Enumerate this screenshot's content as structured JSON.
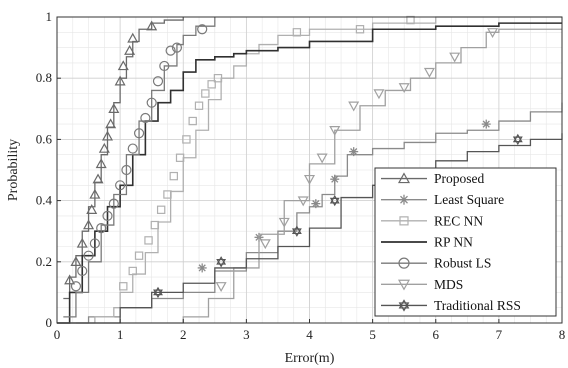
{
  "chart_data": {
    "type": "line",
    "title": "",
    "xlabel": "Error(m)",
    "ylabel": "Probability",
    "xlim": [
      0,
      8
    ],
    "ylim": [
      0,
      1
    ],
    "xticks": [
      "0",
      "1",
      "2",
      "3",
      "4",
      "5",
      "6",
      "7",
      "8"
    ],
    "yticks": [
      "0",
      "0.2",
      "0.4",
      "0.6",
      "0.8",
      "1"
    ],
    "grid": true,
    "minor_grid": true,
    "legend_position": "bottom-right",
    "series": [
      {
        "name": "Proposed",
        "color": "#6a6a6a",
        "marker": "triangle-up",
        "x": [
          0.1,
          0.2,
          0.3,
          0.4,
          0.5,
          0.6,
          0.7,
          0.8,
          0.9,
          1.0,
          1.1,
          1.2,
          1.3,
          1.5,
          1.7,
          2.0
        ],
        "y": [
          0.08,
          0.15,
          0.22,
          0.3,
          0.38,
          0.46,
          0.55,
          0.64,
          0.72,
          0.8,
          0.87,
          0.92,
          0.96,
          0.98,
          0.99,
          1.0
        ],
        "markers_x": [
          0.2,
          0.3,
          0.4,
          0.5,
          0.55,
          0.6,
          0.65,
          0.7,
          0.75,
          0.8,
          0.85,
          0.9,
          1.0,
          1.05,
          1.15,
          1.2,
          1.5
        ],
        "markers_y": [
          0.14,
          0.2,
          0.26,
          0.32,
          0.37,
          0.42,
          0.47,
          0.52,
          0.57,
          0.61,
          0.65,
          0.7,
          0.79,
          0.84,
          0.89,
          0.93,
          0.97
        ]
      },
      {
        "name": "Least Square",
        "color": "#8a8a8a",
        "marker": "asterisk",
        "x": [
          0.0,
          0.5,
          1.0,
          1.5,
          2.0,
          2.5,
          3.0,
          3.5,
          3.8,
          4.0,
          4.2,
          4.4,
          4.6,
          5.0,
          5.5,
          6.0,
          6.5,
          7.0,
          7.5,
          8.0
        ],
        "y": [
          0.0,
          0.02,
          0.05,
          0.08,
          0.1,
          0.17,
          0.23,
          0.3,
          0.36,
          0.38,
          0.42,
          0.48,
          0.55,
          0.57,
          0.59,
          0.62,
          0.63,
          0.66,
          0.69,
          0.72
        ],
        "markers_x": [
          2.3,
          3.2,
          4.1,
          4.4,
          4.7,
          6.8
        ],
        "markers_y": [
          0.18,
          0.28,
          0.39,
          0.47,
          0.56,
          0.65
        ]
      },
      {
        "name": "REC NN",
        "color": "#b0b0b0",
        "marker": "square",
        "x": [
          0.3,
          0.6,
          0.9,
          1.0,
          1.2,
          1.4,
          1.6,
          1.8,
          2.0,
          2.2,
          2.4,
          2.6,
          2.8,
          3.0,
          3.2,
          3.5,
          4.0,
          5.0,
          6.0,
          8.0
        ],
        "y": [
          0.0,
          0.02,
          0.05,
          0.1,
          0.16,
          0.23,
          0.33,
          0.43,
          0.54,
          0.63,
          0.73,
          0.8,
          0.84,
          0.88,
          0.91,
          0.94,
          0.96,
          0.98,
          1.0,
          1.0
        ],
        "markers_x": [
          1.05,
          1.2,
          1.3,
          1.45,
          1.55,
          1.65,
          1.75,
          1.85,
          1.95,
          2.05,
          2.15,
          2.25,
          2.35,
          2.45,
          2.55,
          3.8,
          4.8,
          5.6
        ],
        "markers_y": [
          0.12,
          0.17,
          0.22,
          0.27,
          0.32,
          0.37,
          0.42,
          0.48,
          0.54,
          0.6,
          0.66,
          0.71,
          0.75,
          0.78,
          0.8,
          0.95,
          0.96,
          0.99
        ]
      },
      {
        "name": "RP NN",
        "color": "#303030",
        "marker": "none",
        "x": [
          0.0,
          0.2,
          0.4,
          0.6,
          0.8,
          1.0,
          1.2,
          1.4,
          1.6,
          1.8,
          2.0,
          2.2,
          2.5,
          2.8,
          3.0,
          3.5,
          4.0,
          5.0,
          6.0,
          7.0,
          8.0
        ],
        "y": [
          0.0,
          0.1,
          0.22,
          0.3,
          0.38,
          0.45,
          0.55,
          0.66,
          0.72,
          0.76,
          0.82,
          0.86,
          0.87,
          0.88,
          0.89,
          0.9,
          0.92,
          0.96,
          0.97,
          0.98,
          0.98
        ]
      },
      {
        "name": "Robust LS",
        "color": "#7a7a7a",
        "marker": "circle",
        "x": [
          0.1,
          0.3,
          0.5,
          0.7,
          0.9,
          1.1,
          1.3,
          1.5,
          1.7,
          1.9,
          2.0,
          2.2,
          2.5
        ],
        "y": [
          0.02,
          0.1,
          0.2,
          0.32,
          0.42,
          0.55,
          0.66,
          0.76,
          0.84,
          0.91,
          0.94,
          0.97,
          1.0
        ],
        "markers_x": [
          0.3,
          0.4,
          0.5,
          0.6,
          0.7,
          0.8,
          0.9,
          1.0,
          1.1,
          1.2,
          1.3,
          1.4,
          1.5,
          1.6,
          1.7,
          1.8,
          1.9,
          2.3
        ],
        "markers_y": [
          0.12,
          0.17,
          0.22,
          0.26,
          0.31,
          0.35,
          0.39,
          0.45,
          0.5,
          0.57,
          0.62,
          0.67,
          0.72,
          0.79,
          0.84,
          0.89,
          0.9,
          0.96
        ]
      },
      {
        "name": "MDS",
        "color": "#a0a0a0",
        "marker": "triangle-down",
        "x": [
          0.0,
          1.0,
          2.0,
          2.4,
          2.8,
          3.2,
          3.6,
          4.0,
          4.4,
          4.8,
          5.2,
          5.6,
          6.0,
          6.4,
          6.8,
          7.0,
          8.0
        ],
        "y": [
          0.0,
          0.0,
          0.02,
          0.08,
          0.18,
          0.29,
          0.4,
          0.52,
          0.63,
          0.71,
          0.76,
          0.8,
          0.85,
          0.9,
          0.95,
          0.96,
          0.96
        ],
        "markers_x": [
          2.6,
          3.3,
          3.6,
          3.9,
          4.0,
          4.2,
          4.4,
          4.7,
          5.1,
          5.5,
          5.9,
          6.3,
          6.9
        ],
        "markers_y": [
          0.12,
          0.26,
          0.33,
          0.4,
          0.47,
          0.54,
          0.63,
          0.71,
          0.75,
          0.77,
          0.82,
          0.87,
          0.95
        ]
      },
      {
        "name": "Traditional RSS",
        "color": "#555555",
        "marker": "hexagram",
        "x": [
          0.0,
          1.0,
          1.5,
          2.0,
          2.5,
          3.0,
          3.5,
          4.0,
          4.5,
          5.0,
          5.5,
          6.0,
          6.5,
          7.0,
          7.5,
          8.0
        ],
        "y": [
          0.0,
          0.05,
          0.1,
          0.13,
          0.18,
          0.21,
          0.25,
          0.31,
          0.41,
          0.45,
          0.5,
          0.53,
          0.56,
          0.58,
          0.6,
          0.62
        ],
        "markers_x": [
          1.6,
          2.6,
          3.8,
          4.4,
          7.3
        ],
        "markers_y": [
          0.1,
          0.2,
          0.3,
          0.4,
          0.6
        ]
      }
    ]
  }
}
